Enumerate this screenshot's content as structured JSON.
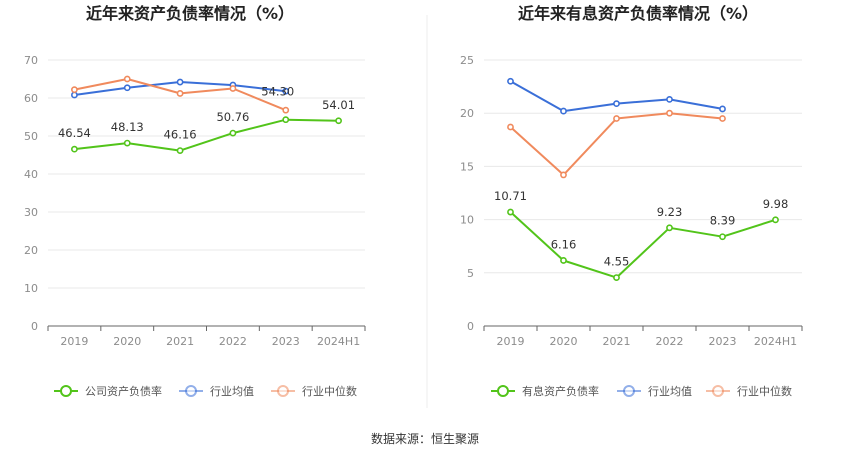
{
  "source": "数据来源：恒生聚源",
  "chart_data": [
    {
      "type": "line",
      "title": "近年来资产负债率情况（%）",
      "categories": [
        "2019",
        "2020",
        "2021",
        "2022",
        "2023",
        "2024H1"
      ],
      "ylim": [
        0,
        70
      ],
      "yticks": [
        0,
        10,
        20,
        30,
        40,
        50,
        60,
        70
      ],
      "grid": true,
      "legend_position": "bottom",
      "series": [
        {
          "name": "公司资产负债率",
          "color": "#52c41a",
          "values": [
            46.54,
            48.13,
            46.16,
            50.76,
            54.3,
            54.01
          ],
          "labels": [
            "46.54",
            "48.13",
            "46.16",
            "50.76",
            "54.30",
            "54.01"
          ]
        },
        {
          "name": "行业均值",
          "color": "#3a6fd8",
          "values": [
            60.8,
            62.7,
            64.2,
            63.4,
            61.8,
            null
          ]
        },
        {
          "name": "行业中位数",
          "color": "#f08a5d",
          "values": [
            62.2,
            65.0,
            61.2,
            62.5,
            56.8,
            null
          ]
        }
      ]
    },
    {
      "type": "line",
      "title": "近年来有息资产负债率情况（%）",
      "categories": [
        "2019",
        "2020",
        "2021",
        "2022",
        "2023",
        "2024H1"
      ],
      "ylim": [
        0,
        25
      ],
      "yticks": [
        0,
        5,
        10,
        15,
        20,
        25
      ],
      "grid": true,
      "legend_position": "bottom",
      "series": [
        {
          "name": "有息资产负债率",
          "color": "#52c41a",
          "values": [
            10.71,
            6.16,
            4.55,
            9.23,
            8.39,
            9.98
          ],
          "labels": [
            "10.71",
            "6.16",
            "4.55",
            "9.23",
            "8.39",
            "9.98"
          ]
        },
        {
          "name": "行业均值",
          "color": "#3a6fd8",
          "values": [
            23.0,
            20.2,
            20.9,
            21.3,
            20.4,
            null
          ]
        },
        {
          "name": "行业中位数",
          "color": "#f08a5d",
          "values": [
            18.7,
            14.2,
            19.5,
            20.0,
            19.5,
            null
          ]
        }
      ]
    }
  ]
}
